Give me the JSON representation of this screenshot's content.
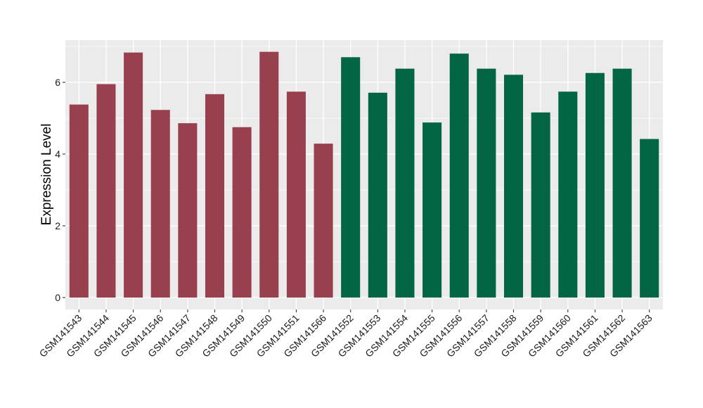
{
  "chart_data": {
    "type": "bar",
    "title": "",
    "xlabel": "",
    "ylabel": "Expression Level",
    "ylim": [
      -0.35,
      7.1
    ],
    "yticks": [
      0,
      2,
      4,
      6
    ],
    "grid": true,
    "legend": "none",
    "categories": [
      "GSM141543",
      "GSM141544",
      "GSM141545",
      "GSM141546",
      "GSM141547",
      "GSM141548",
      "GSM141549",
      "GSM141550",
      "GSM141551",
      "GSM141566",
      "GSM141552",
      "GSM141553",
      "GSM141554",
      "GSM141555",
      "GSM141556",
      "GSM141557",
      "GSM141558",
      "GSM141559",
      "GSM141560",
      "GSM141561",
      "GSM141562",
      "GSM141563"
    ],
    "values": [
      5.38,
      5.95,
      6.83,
      5.23,
      4.86,
      5.67,
      4.75,
      6.85,
      5.74,
      4.29,
      6.7,
      5.71,
      6.38,
      4.88,
      6.8,
      6.38,
      6.21,
      5.16,
      5.74,
      6.26,
      6.38,
      4.42
    ],
    "groups": [
      0,
      0,
      0,
      0,
      0,
      0,
      0,
      0,
      0,
      0,
      1,
      1,
      1,
      1,
      1,
      1,
      1,
      1,
      1,
      1,
      1,
      1
    ],
    "group_colors": [
      "#99404f",
      "#026644"
    ],
    "panel_background": "#ebebeb",
    "grid_color": "#ffffff"
  }
}
